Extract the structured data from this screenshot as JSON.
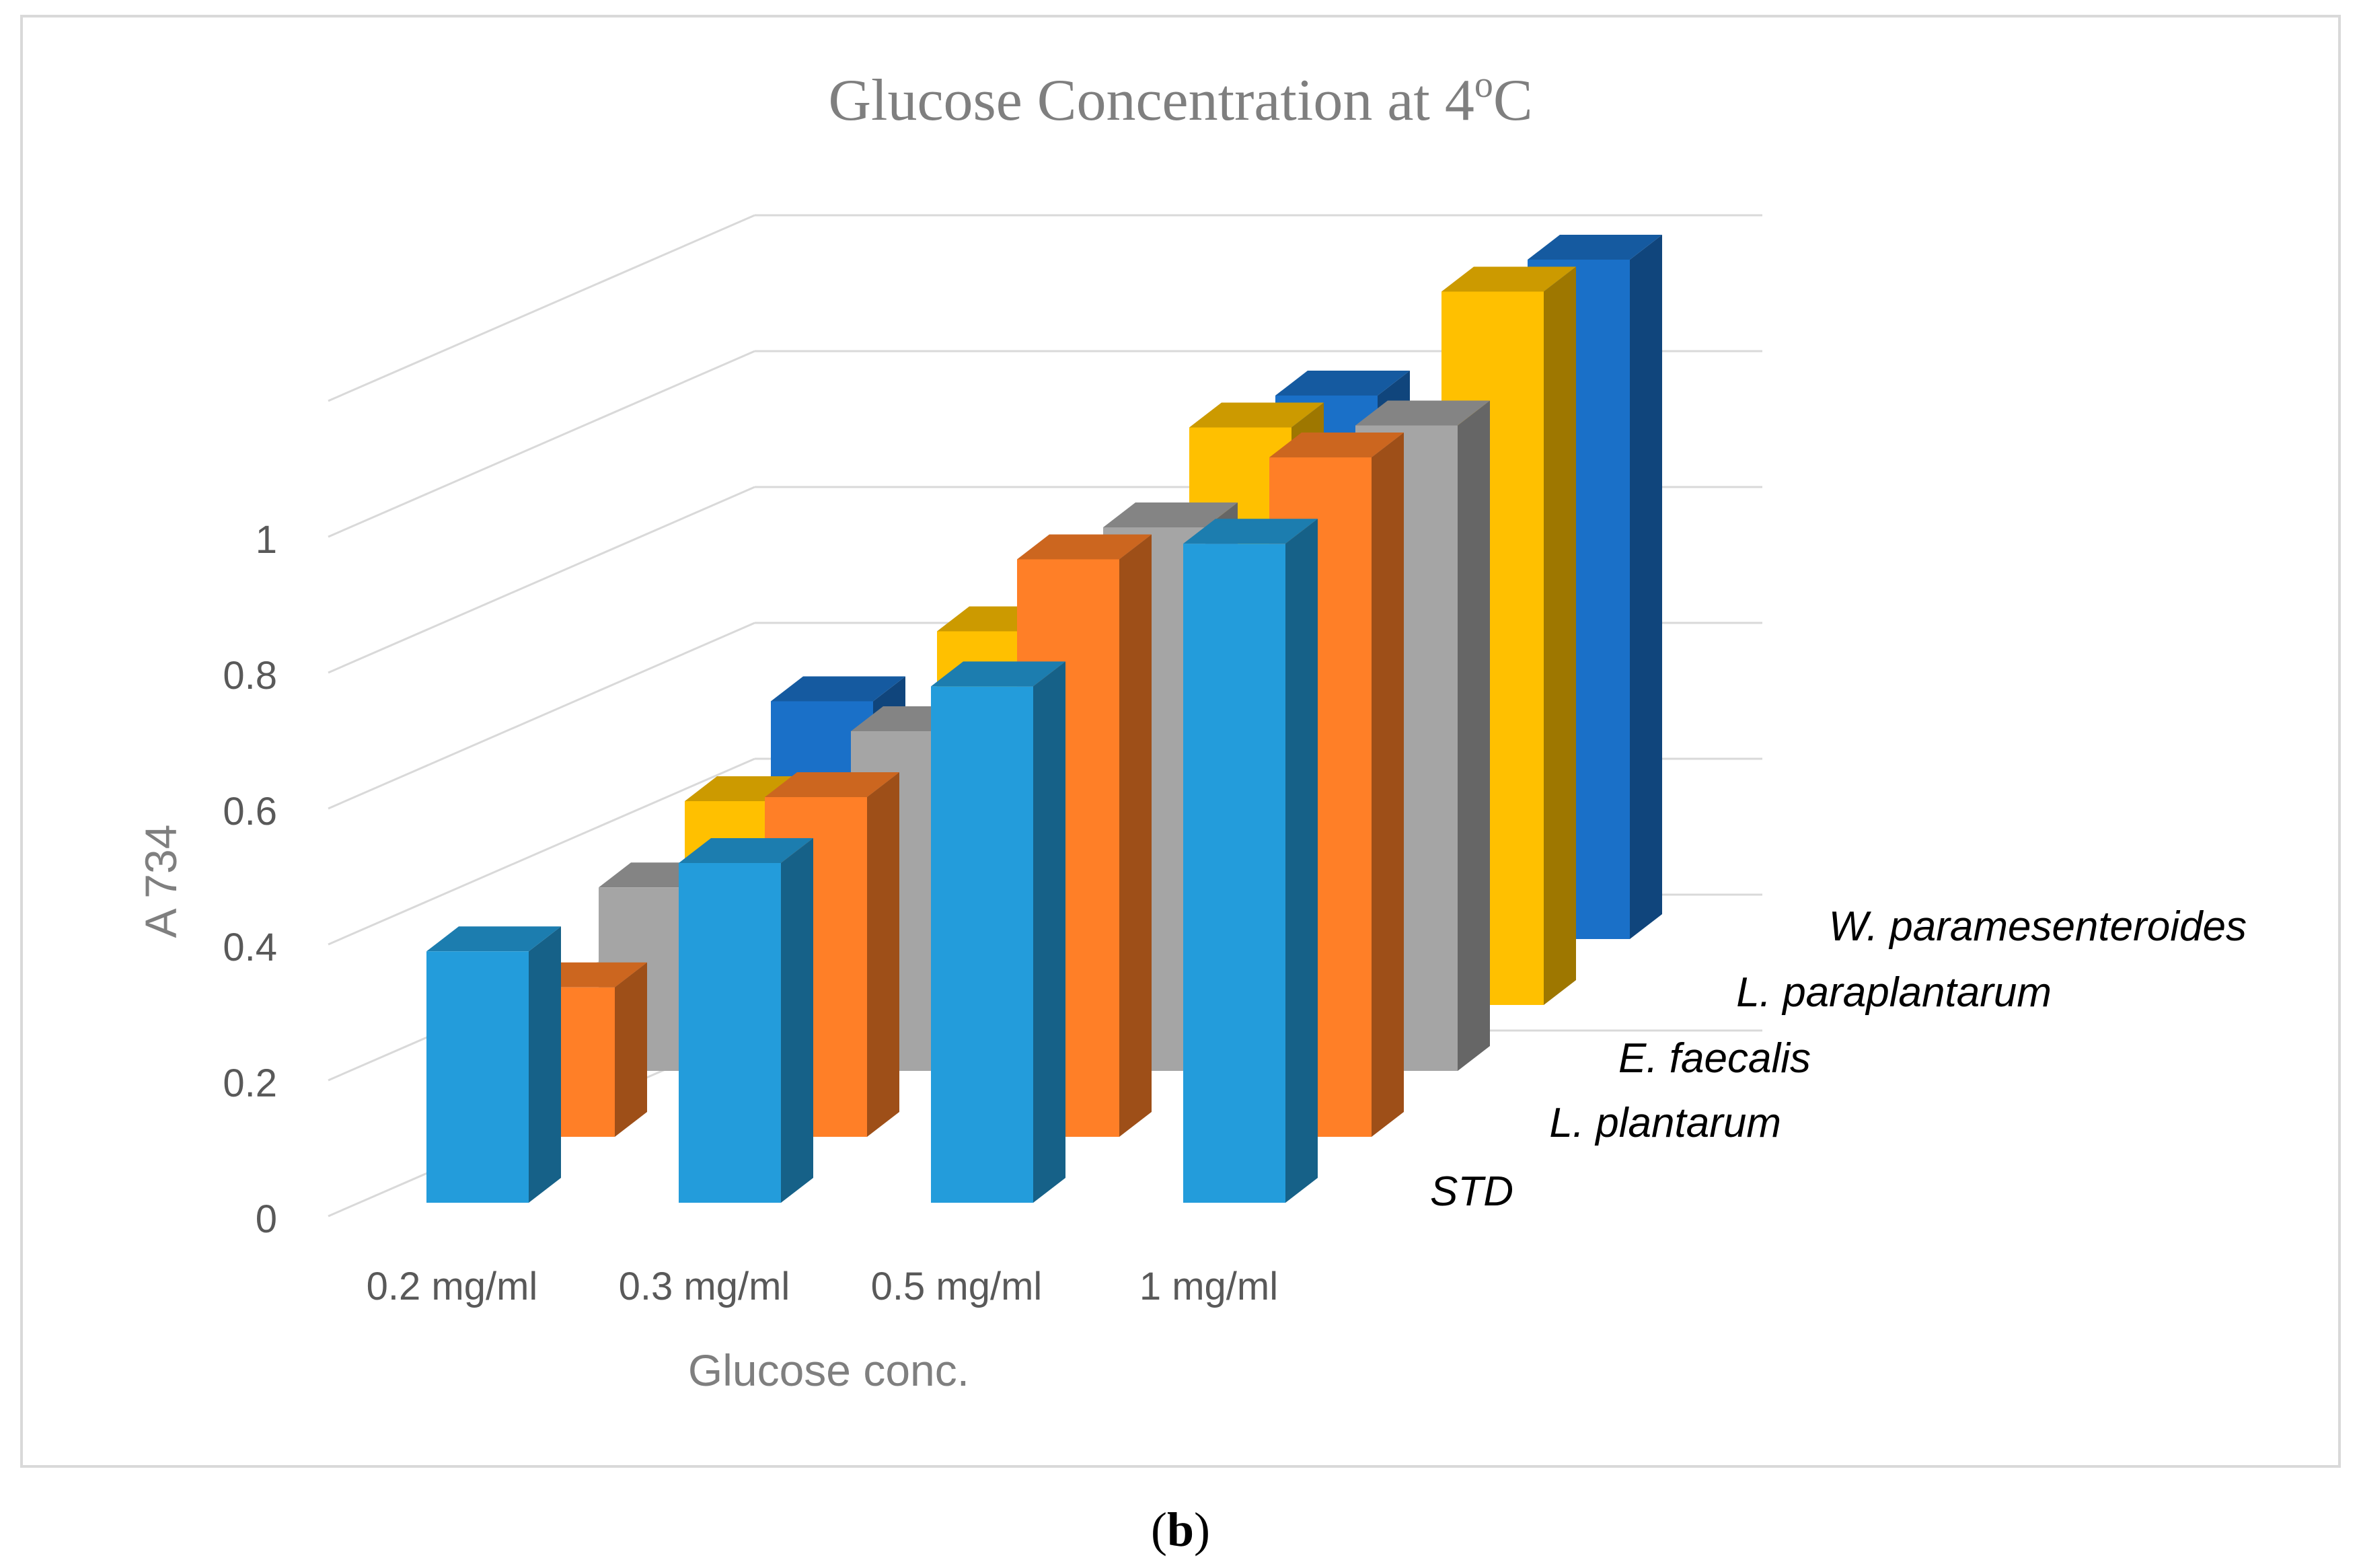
{
  "chart_data": {
    "type": "bar",
    "variant": "3d-clustered-column",
    "title": "Glucose Concentration at 4",
    "title_superscript": "o",
    "title_suffix": "C",
    "xlabel": "Glucose conc.",
    "ylabel": "A 734",
    "ylim": [
      0,
      1.2
    ],
    "yticks": [
      "0",
      "0.2",
      "0.4",
      "0.6",
      "0.8",
      "1"
    ],
    "categories": [
      "0.2 mg/ml",
      "0.3 mg/ml",
      "0.5 mg/ml",
      "1 mg/ml"
    ],
    "series": [
      {
        "name": "STD",
        "values": [
          0.37,
          0.5,
          0.76,
          0.97
        ]
      },
      {
        "name": "L. plantarum",
        "values": [
          0.22,
          0.5,
          0.85,
          1.0
        ]
      },
      {
        "name": "E. faecalis",
        "values": [
          0.27,
          0.5,
          0.8,
          0.95
        ]
      },
      {
        "name": "L. paraplantarum",
        "values": [
          0.3,
          0.55,
          0.85,
          1.05
        ]
      },
      {
        "name": "W. paramesenteroides",
        "values": [
          0.35,
          0.55,
          0.8,
          1.0
        ]
      }
    ],
    "grid": true,
    "legend": "depth-axis labels, right"
  },
  "colors": {
    "STD": "#239cdb",
    "L. plantarum": "#ff7f27",
    "E. faecalis": "#a5a5a5",
    "L. paraplantarum": "#ffc000",
    "W. paramesenteroides": "#1a70c8"
  },
  "caption": {
    "open": "(",
    "letter": "b",
    "close": ")"
  }
}
